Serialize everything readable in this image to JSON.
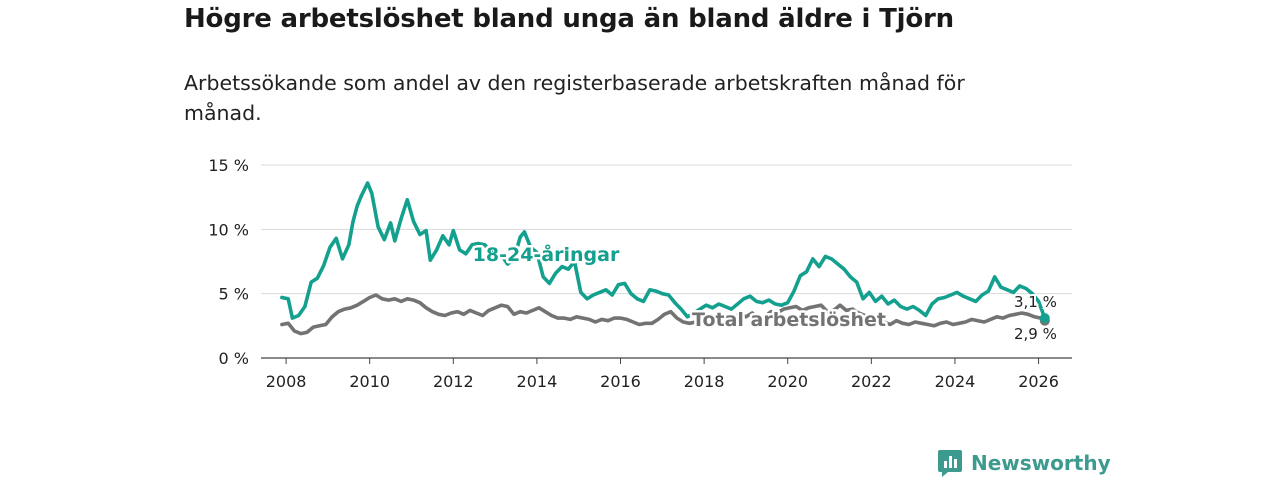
{
  "title": "Högre arbetslöshet bland unga än bland äldre i Tjörn",
  "subtitle": "Arbetssökande som andel av den registerbaserade arbetskraften månad för månad.",
  "colors": {
    "young": "#14a08f",
    "total": "#737373",
    "grid": "#d9d9d9",
    "brand": "#3d9a8e"
  },
  "brand": {
    "name": "Newsworthy",
    "icon": "newsworthy-logo-icon"
  },
  "chart_data": {
    "type": "line",
    "title": "Högre arbetslöshet bland unga än bland äldre i Tjörn",
    "xlabel": "",
    "ylabel": "",
    "xlim": [
      2007.4,
      2026.8
    ],
    "ylim": [
      0,
      15
    ],
    "y_ticks": [
      0,
      5,
      10,
      15
    ],
    "y_tick_labels": [
      "0 %",
      "5 %",
      "10 %",
      "15 %"
    ],
    "x_ticks": [
      2008,
      2010,
      2012,
      2014,
      2016,
      2018,
      2020,
      2022,
      2024,
      2026
    ],
    "x_tick_labels": [
      "2008",
      "2010",
      "2012",
      "2014",
      "2016",
      "2018",
      "2020",
      "2022",
      "2024",
      "2026"
    ],
    "grid": true,
    "series": [
      {
        "name": "18-24-åringar",
        "label": "18-24-åringar",
        "end_label": "3,1 %",
        "end_value": 3.1,
        "x": [
          2007.9,
          2008.05,
          2008.15,
          2008.3,
          2008.45,
          2008.6,
          2008.75,
          2008.9,
          2009.05,
          2009.2,
          2009.35,
          2009.5,
          2009.6,
          2009.7,
          2009.8,
          2009.95,
          2010.05,
          2010.2,
          2010.35,
          2010.5,
          2010.6,
          2010.75,
          2010.9,
          2011.05,
          2011.2,
          2011.35,
          2011.45,
          2011.6,
          2011.75,
          2011.9,
          2012.0,
          2012.15,
          2012.3,
          2012.45,
          2012.6,
          2012.75,
          2012.9,
          2013.0,
          2013.15,
          2013.3,
          2013.45,
          2013.6,
          2013.7,
          2013.85,
          2014.0,
          2014.15,
          2014.3,
          2014.45,
          2014.6,
          2014.75,
          2014.9,
          2015.05,
          2015.2,
          2015.35,
          2015.5,
          2015.65,
          2015.8,
          2015.95,
          2016.1,
          2016.25,
          2016.4,
          2016.55,
          2016.7,
          2016.85,
          2017.0,
          2017.15,
          2017.3,
          2017.45,
          2017.6,
          2017.75,
          2017.9,
          2018.05,
          2018.2,
          2018.35,
          2018.5,
          2018.65,
          2018.8,
          2018.95,
          2019.1,
          2019.25,
          2019.4,
          2019.55,
          2019.7,
          2019.85,
          2020.0,
          2020.15,
          2020.3,
          2020.45,
          2020.6,
          2020.75,
          2020.9,
          2021.05,
          2021.2,
          2021.35,
          2021.5,
          2021.65,
          2021.8,
          2021.95,
          2022.1,
          2022.25,
          2022.4,
          2022.55,
          2022.7,
          2022.85,
          2023.0,
          2023.15,
          2023.3,
          2023.45,
          2023.6,
          2023.75,
          2023.9,
          2024.05,
          2024.2,
          2024.35,
          2024.5,
          2024.65,
          2024.8,
          2024.95,
          2025.1,
          2025.25,
          2025.4,
          2025.55,
          2025.7,
          2025.85,
          2026.0,
          2026.15
        ],
        "y": [
          4.7,
          4.6,
          3.1,
          3.3,
          4.0,
          5.9,
          6.2,
          7.2,
          8.6,
          9.3,
          7.7,
          8.8,
          10.6,
          11.8,
          12.6,
          13.6,
          12.8,
          10.2,
          9.2,
          10.5,
          9.1,
          10.8,
          12.3,
          10.6,
          9.6,
          9.9,
          7.6,
          8.4,
          9.5,
          8.8,
          9.9,
          8.4,
          8.1,
          8.8,
          8.9,
          8.8,
          8.3,
          7.9,
          8.0,
          7.3,
          7.7,
          9.4,
          9.8,
          8.6,
          8.2,
          6.3,
          5.8,
          6.6,
          7.1,
          6.9,
          7.5,
          5.1,
          4.6,
          4.9,
          5.1,
          5.3,
          4.9,
          5.7,
          5.8,
          5.0,
          4.6,
          4.4,
          5.3,
          5.2,
          5.0,
          4.9,
          4.3,
          3.8,
          3.2,
          3.5,
          3.8,
          4.1,
          3.9,
          4.2,
          4.0,
          3.8,
          4.2,
          4.6,
          4.8,
          4.4,
          4.3,
          4.5,
          4.2,
          4.1,
          4.3,
          5.2,
          6.4,
          6.7,
          7.7,
          7.1,
          7.9,
          7.7,
          7.3,
          6.9,
          6.3,
          5.9,
          4.6,
          5.1,
          4.4,
          4.8,
          4.2,
          4.5,
          4.0,
          3.8,
          4.0,
          3.7,
          3.3,
          4.2,
          4.6,
          4.7,
          4.9,
          5.1,
          4.8,
          4.6,
          4.4,
          4.9,
          5.2,
          6.3,
          5.5,
          5.3,
          5.1,
          5.6,
          5.4,
          5.0,
          4.4,
          3.1
        ]
      },
      {
        "name": "Total arbetslöshet",
        "label": "Total arbetslöshet",
        "end_label": "2,9 %",
        "end_value": 2.9,
        "x": [
          2007.9,
          2008.05,
          2008.2,
          2008.35,
          2008.5,
          2008.65,
          2008.8,
          2008.95,
          2009.1,
          2009.25,
          2009.4,
          2009.55,
          2009.7,
          2009.85,
          2010.0,
          2010.15,
          2010.3,
          2010.45,
          2010.6,
          2010.75,
          2010.9,
          2011.05,
          2011.2,
          2011.35,
          2011.5,
          2011.65,
          2011.8,
          2011.95,
          2012.1,
          2012.25,
          2012.4,
          2012.55,
          2012.7,
          2012.85,
          2013.0,
          2013.15,
          2013.3,
          2013.45,
          2013.6,
          2013.75,
          2013.9,
          2014.05,
          2014.2,
          2014.35,
          2014.5,
          2014.65,
          2014.8,
          2014.95,
          2015.1,
          2015.25,
          2015.4,
          2015.55,
          2015.7,
          2015.85,
          2016.0,
          2016.15,
          2016.3,
          2016.45,
          2016.6,
          2016.75,
          2016.9,
          2017.05,
          2017.2,
          2017.35,
          2017.5,
          2017.65,
          2017.8,
          2017.95,
          2018.1,
          2018.25,
          2018.4,
          2018.55,
          2018.7,
          2018.85,
          2019.0,
          2019.15,
          2019.3,
          2019.45,
          2019.6,
          2019.75,
          2019.9,
          2020.05,
          2020.2,
          2020.35,
          2020.5,
          2020.65,
          2020.8,
          2020.95,
          2021.1,
          2021.25,
          2021.4,
          2021.55,
          2021.7,
          2021.85,
          2022.0,
          2022.15,
          2022.3,
          2022.45,
          2022.6,
          2022.75,
          2022.9,
          2023.05,
          2023.2,
          2023.35,
          2023.5,
          2023.65,
          2023.8,
          2023.95,
          2024.1,
          2024.25,
          2024.4,
          2024.55,
          2024.7,
          2024.85,
          2025.0,
          2025.15,
          2025.3,
          2025.45,
          2025.6,
          2025.75,
          2025.9,
          2026.05,
          2026.15
        ],
        "y": [
          2.6,
          2.7,
          2.1,
          1.9,
          2.0,
          2.4,
          2.5,
          2.6,
          3.2,
          3.6,
          3.8,
          3.9,
          4.1,
          4.4,
          4.7,
          4.9,
          4.6,
          4.5,
          4.6,
          4.4,
          4.6,
          4.5,
          4.3,
          3.9,
          3.6,
          3.4,
          3.3,
          3.5,
          3.6,
          3.4,
          3.7,
          3.5,
          3.3,
          3.7,
          3.9,
          4.1,
          4.0,
          3.4,
          3.6,
          3.5,
          3.7,
          3.9,
          3.6,
          3.3,
          3.1,
          3.1,
          3.0,
          3.2,
          3.1,
          3.0,
          2.8,
          3.0,
          2.9,
          3.1,
          3.1,
          3.0,
          2.8,
          2.6,
          2.7,
          2.7,
          3.0,
          3.4,
          3.6,
          3.1,
          2.8,
          2.7,
          2.8,
          2.9,
          3.1,
          3.2,
          3.3,
          3.0,
          3.2,
          3.4,
          3.2,
          3.5,
          3.1,
          3.2,
          3.6,
          3.5,
          3.8,
          3.9,
          4.0,
          3.7,
          3.9,
          4.0,
          4.1,
          3.6,
          3.7,
          4.1,
          3.7,
          3.8,
          3.5,
          3.3,
          3.1,
          3.0,
          2.8,
          2.6,
          2.9,
          2.7,
          2.6,
          2.8,
          2.7,
          2.6,
          2.5,
          2.7,
          2.8,
          2.6,
          2.7,
          2.8,
          3.0,
          2.9,
          2.8,
          3.0,
          3.2,
          3.1,
          3.3,
          3.4,
          3.5,
          3.4,
          3.2,
          3.1,
          2.9
        ]
      }
    ]
  }
}
